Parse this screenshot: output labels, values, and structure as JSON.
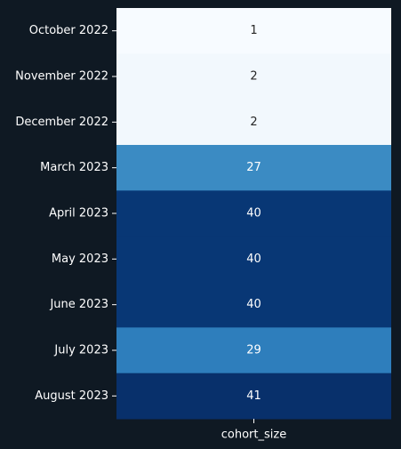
{
  "chart_data": {
    "type": "heatmap",
    "categories": [
      "October 2022",
      "November 2022",
      "December 2022",
      "March 2023",
      "April 2023",
      "May 2023",
      "June 2023",
      "July 2023",
      "August 2023"
    ],
    "columns": [
      "cohort_size"
    ],
    "values": [
      1,
      2,
      2,
      27,
      40,
      40,
      40,
      29,
      41
    ],
    "colormap": "Blues",
    "colorbar": false,
    "annotations": true
  },
  "colors": {
    "background": "#0f1923",
    "text": "#ffffff",
    "axis_text": "#ffffff"
  }
}
